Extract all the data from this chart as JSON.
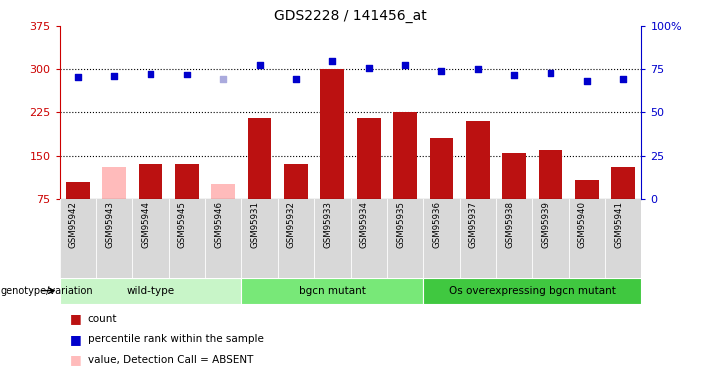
{
  "title": "GDS2228 / 141456_at",
  "samples": [
    "GSM95942",
    "GSM95943",
    "GSM95944",
    "GSM95945",
    "GSM95946",
    "GSM95931",
    "GSM95932",
    "GSM95933",
    "GSM95934",
    "GSM95935",
    "GSM95936",
    "GSM95937",
    "GSM95938",
    "GSM95939",
    "GSM95940",
    "GSM95941"
  ],
  "bar_values": [
    105,
    130,
    135,
    135,
    100,
    215,
    135,
    300,
    215,
    225,
    180,
    210,
    155,
    160,
    108,
    130
  ],
  "bar_absent": [
    false,
    true,
    false,
    false,
    true,
    false,
    false,
    false,
    false,
    false,
    false,
    false,
    false,
    false,
    false,
    false
  ],
  "dot_values": [
    287,
    288,
    292,
    291,
    284,
    307,
    284,
    315,
    302,
    307,
    297,
    300,
    290,
    293,
    280,
    284
  ],
  "dot_absent": [
    false,
    false,
    false,
    false,
    true,
    false,
    false,
    false,
    false,
    false,
    false,
    false,
    false,
    false,
    false,
    false
  ],
  "groups": [
    {
      "label": "wild-type",
      "start": 0,
      "end": 5,
      "color": "#c8f5c8"
    },
    {
      "label": "bgcn mutant",
      "start": 5,
      "end": 10,
      "color": "#78e878"
    },
    {
      "label": "Os overexpressing bgcn mutant",
      "start": 10,
      "end": 16,
      "color": "#40c840"
    }
  ],
  "ylim_left": [
    75,
    375
  ],
  "ylim_right": [
    0,
    100
  ],
  "yticks_left": [
    75,
    150,
    225,
    300,
    375
  ],
  "yticks_right": [
    0,
    25,
    50,
    75,
    100
  ],
  "bar_color": "#bb1111",
  "bar_absent_color": "#ffbbbb",
  "dot_color": "#0000cc",
  "dot_absent_color": "#aaaadd",
  "title_color": "#000000",
  "left_axis_color": "#cc0000",
  "right_axis_color": "#0000cc",
  "grid_yticks": [
    150,
    225,
    300
  ],
  "plot_bg": "#ffffff",
  "xtick_bg": "#d8d8d8"
}
